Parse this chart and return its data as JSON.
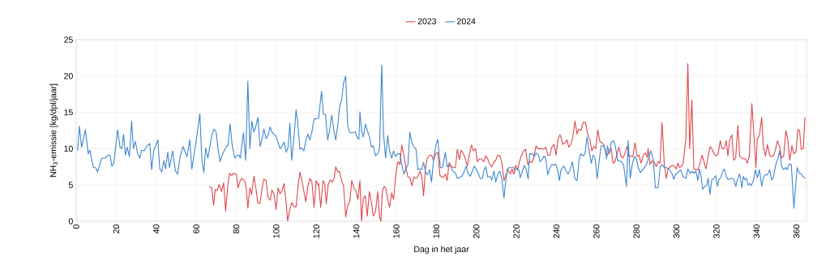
{
  "chart_data": {
    "type": "line",
    "xlabel": "Dag in het jaar",
    "ylabel": "NH$_{3}$-emissie [kg/dpl/jaar]",
    "xlim": [
      0,
      365
    ],
    "xticks": [
      0,
      20,
      40,
      60,
      80,
      100,
      120,
      140,
      160,
      180,
      200,
      220,
      240,
      260,
      280,
      300,
      320,
      340,
      360
    ],
    "ylim": [
      0,
      25
    ],
    "yticks": [
      0,
      5,
      10,
      15,
      20,
      25
    ],
    "grid": true,
    "legend": "top",
    "marker": "none",
    "line_style": "solid",
    "series": [
      {
        "name": "2023",
        "color": "#e0474c",
        "x": [
          66.5,
          67.8,
          68.7,
          69.5,
          70.5,
          71.4,
          72.6,
          73.7,
          74.7,
          75.7,
          76.6,
          77.7,
          78.6,
          80,
          80.9,
          82,
          82.9,
          84.3,
          85,
          85.8,
          86.8,
          87.7,
          88.8,
          89.7,
          90.8,
          91.9,
          92.8,
          93.8,
          94.9,
          95.9,
          97,
          97.8,
          98.9,
          99.9,
          100.9,
          101.9,
          103,
          103.9,
          105,
          105.7,
          106.6,
          107.7,
          108.8,
          109.9,
          110.8,
          111.8,
          112.8,
          113.8,
          114.7,
          115.8,
          116.8,
          117.8,
          118.9,
          119.9,
          120.9,
          121.2,
          122.2,
          123.4,
          124.2,
          125,
          125.9,
          126.9,
          128,
          128.9,
          129.7,
          130.7,
          131.6,
          132.7,
          133.6,
          134.7,
          135.7,
          136.8,
          137.7,
          138.8,
          139.9,
          140.8,
          141.8,
          142.6,
          143.5,
          144.5,
          145.5,
          146.5,
          147.6,
          148.5,
          149.6,
          150.7,
          151.6,
          152.3,
          153,
          153.9,
          154.7,
          155.7,
          156.6,
          157.7,
          158.6,
          159.7,
          160.7,
          161.8,
          162.7,
          163.8,
          164.7,
          165.8,
          166.8,
          167.8,
          168.8,
          169.8,
          170.8,
          171.9,
          172.8,
          173.6,
          174.6,
          175.5,
          176.6,
          177.6,
          178.6,
          179.7,
          180.7,
          181.8,
          182.3,
          183.4,
          184.5,
          185.4,
          186.4,
          187.4,
          188.5,
          189.5,
          190.5,
          191.5,
          192.4,
          193.5,
          194.5,
          195.5,
          196.6,
          197.6,
          198.5,
          199.6,
          200.5,
          201.6,
          202.6,
          203.6,
          204.7,
          205.7,
          206.8,
          207.7,
          208.8,
          209.7,
          210.7,
          211.8,
          212.8,
          213.8,
          214.8,
          215.8,
          216.9,
          217.8,
          218.8,
          219.6,
          220.6,
          221.5,
          222.6,
          223.6,
          224.6,
          225.7,
          226.6,
          227.7,
          228.6,
          229.8,
          230.7,
          231.8,
          232.7,
          233.6,
          234.7,
          235.7,
          236.7,
          237.7,
          238.8,
          239.9,
          240.8,
          241.8,
          242.6,
          243.1,
          244.2,
          245.3,
          246.2,
          247.2,
          248.2,
          249.3,
          250.3,
          251.2,
          252.3,
          253.4,
          254.6,
          255.7,
          256.8,
          257.7,
          258.8,
          259.7,
          260.7,
          261.7,
          262.8,
          263.8,
          264.7,
          265.5,
          266.5,
          267.4,
          268.3,
          269.2,
          270.1,
          271.2,
          272.3,
          273.2,
          274.2,
          275.3,
          276.3,
          277.3,
          278.2,
          279.3,
          280.4,
          281.3,
          282.3,
          283.4,
          284.5,
          285.4,
          285.8,
          286.8,
          287.7,
          288.8,
          289.9,
          290.8,
          291.8,
          292.8,
          293.9,
          294.9,
          295.8,
          296.9,
          297.9,
          298.9,
          299.9,
          300.7,
          301.6,
          302.6,
          303.4,
          304.7,
          305.7,
          306.6,
          307.7,
          308.7,
          309.7,
          310.8,
          311.8,
          312.8,
          313.8,
          314.7,
          315.8,
          316.9,
          317.8,
          318.8,
          319.9,
          320.8,
          321.9,
          322.8,
          323.9,
          324.9,
          325.7,
          326.6,
          327.7,
          328.6,
          329.6,
          330.7,
          331.6,
          332.7,
          333.6,
          334.5,
          335.4,
          336.4,
          337.7,
          338.8,
          339.7,
          340.4,
          341.5,
          342.6,
          343.5,
          344.5,
          345.5,
          346.5,
          347.6,
          348.5,
          349.6,
          350.5,
          351.6,
          352.6,
          353.6,
          354.7,
          355.7,
          356.6,
          357.7,
          358.6,
          359.7,
          360.7,
          361.5,
          362.4,
          363.4,
          364.2
        ],
        "values": [
          4.8,
          4.6,
          2.2,
          4.4,
          4.2,
          5.1,
          4.1,
          5.3,
          1.4,
          4.8,
          6.6,
          6.3,
          6.6,
          6.5,
          4.6,
          5.6,
          5.9,
          5.5,
          4.5,
          1.8,
          4.6,
          3.7,
          6.2,
          4.8,
          2.5,
          2.5,
          4.3,
          5.8,
          5.6,
          3.3,
          2.9,
          4.3,
          3.7,
          1.6,
          4.6,
          3.8,
          4.3,
          5.2,
          2.3,
          0,
          1.4,
          2.6,
          2.0,
          2.0,
          4.6,
          6.8,
          5.6,
          4.1,
          2.7,
          4.8,
          5.9,
          5.4,
          1.9,
          5.6,
          5.0,
          5.2,
          1.9,
          5.6,
          5.2,
          2.4,
          5.0,
          5.7,
          5.4,
          5.9,
          7.5,
          6.8,
          6.9,
          5.5,
          5.0,
          0.6,
          2.2,
          2.8,
          5.6,
          4.6,
          4.1,
          3.0,
          5.6,
          0,
          3.2,
          3.5,
          0.7,
          4.1,
          2.5,
          0.7,
          1.3,
          4.1,
          0.6,
          0,
          4.1,
          4.8,
          4.6,
          3.0,
          1.9,
          3.9,
          3.0,
          6.3,
          8.2,
          7.8,
          10.5,
          9.1,
          7.4,
          6.1,
          6.0,
          4.9,
          6.1,
          5.9,
          6.2,
          6.9,
          6.0,
          3.5,
          7.4,
          8.7,
          9.1,
          9.1,
          8.4,
          9.3,
          9.5,
          6.3,
          6.2,
          6.0,
          6.5,
          5.6,
          8.1,
          7.6,
          7.4,
          7.4,
          9.9,
          8.5,
          9.8,
          9.3,
          8.6,
          7.6,
          9.3,
          10.5,
          9.7,
          10.0,
          8.2,
          8.6,
          8.6,
          8.2,
          9.0,
          8.6,
          7.8,
          7.5,
          8.2,
          8.4,
          9.1,
          9.0,
          8.0,
          5.6,
          6.4,
          7.1,
          6.5,
          7.2,
          6.5,
          7.7,
          7.1,
          8.2,
          9.1,
          9.7,
          9.9,
          7.8,
          8.3,
          8.1,
          8.7,
          10.4,
          10.0,
          10.0,
          10.0,
          9.9,
          10.2,
          9.1,
          9.1,
          10.2,
          10.6,
          9.1,
          11.3,
          11.9,
          11.3,
          10.6,
          10.8,
          11.2,
          10.2,
          10.6,
          11.6,
          13.8,
          12.0,
          12.7,
          12.5,
          13.6,
          13.6,
          11.9,
          11.2,
          9.7,
          10.3,
          10.0,
          12.6,
          11.0,
          10.8,
          10.5,
          9.3,
          9.1,
          9.7,
          10.0,
          8.0,
          8.2,
          9.0,
          10.2,
          8.9,
          8.7,
          9.3,
          10.3,
          8.9,
          9.0,
          8.9,
          10.8,
          8.9,
          9.1,
          8.0,
          9.1,
          9.4,
          8.8,
          10.0,
          7.8,
          8.3,
          8.2,
          7.5,
          8.2,
          8.0,
          13.6,
          8.0,
          5.9,
          7.2,
          7.5,
          7.7,
          7.6,
          7.2,
          8.0,
          7.4,
          7.6,
          8.1,
          11.3,
          21.7,
          10.0,
          16.7,
          7.2,
          7.1,
          7.1,
          8.0,
          9.1,
          8.2,
          7.2,
          8.9,
          10.3,
          9.9,
          9.3,
          9.0,
          9.3,
          11.1,
          10.0,
          10.0,
          11.1,
          9.0,
          11.2,
          11.9,
          8.4,
          8.7,
          13.2,
          9.0,
          8.7,
          8.6,
          8.6,
          8.0,
          8.9,
          16.2,
          11.5,
          7.4,
          11.3,
          11.9,
          14.3,
          10.1,
          9.0,
          10.6,
          9.1,
          8.9,
          9.0,
          10.0,
          11.1,
          10.2,
          8.7,
          9.0,
          12.5,
          11.2,
          8.4,
          10.4,
          9.3,
          9.5,
          12.6,
          12.5,
          9.9,
          10.0,
          14.3
        ]
      },
      {
        "name": "2024",
        "color": "#3f87d0",
        "x": [
          0.7,
          1.6,
          2.7,
          4.6,
          6,
          6.8,
          8.6,
          9.7,
          10.7,
          12.7,
          14.5,
          15.8,
          16.9,
          17.8,
          18.8,
          20.7,
          21.9,
          22.8,
          23.7,
          24.6,
          25.5,
          26.6,
          27.7,
          28.6,
          29.6,
          30.7,
          31.8,
          32.7,
          34,
          35.4,
          36.8,
          37.7,
          38.8,
          40.8,
          41.8,
          42.8,
          43.8,
          44.6,
          45.8,
          46.6,
          48.2,
          49.6,
          50.7,
          52,
          53.4,
          55.4,
          56.8,
          57.8,
          60.4,
          61.8,
          62.8,
          63.8,
          64.7,
          65.8,
          67.8,
          68.9,
          69.9,
          70.9,
          71.9,
          73.2,
          75.3,
          75.9,
          76.9,
          78,
          79.3,
          80.4,
          81.4,
          82,
          83.6,
          84.7,
          85.8,
          86.8,
          87.8,
          88.8,
          89.7,
          90.8,
          91.9,
          92.8,
          93.8,
          94.9,
          95.9,
          96.9,
          98,
          99.9,
          100.9,
          101.9,
          103,
          103.9,
          105,
          105.9,
          106.8,
          107.7,
          108.8,
          109.9,
          110.8,
          111.8,
          112.7,
          113.8,
          114.7,
          115.8,
          116.8,
          117.8,
          118.9,
          119.9,
          120.9,
          121.2,
          122.6,
          123.6,
          124.6,
          125.7,
          126.6,
          127.7,
          128.9,
          129.7,
          130.7,
          131.6,
          132.7,
          133.6,
          134.7,
          135.7,
          136.8,
          138.1,
          139.5,
          140.5,
          141.3,
          141.8,
          142.6,
          143.5,
          144.6,
          145.5,
          146.6,
          147.6,
          148.5,
          149.6,
          150.7,
          151.6,
          152.7,
          153.6,
          154.6,
          155.7,
          156.6,
          157.7,
          158.6,
          159.7,
          160.7,
          161.8,
          162.7,
          163.8,
          164.7,
          165.8,
          166.8,
          167.8,
          168.8,
          169.8,
          170.8,
          171.9,
          172.6,
          173.6,
          174.6,
          175.5,
          176.6,
          177.6,
          178.6,
          179.7,
          180.7,
          182,
          183.1,
          184.5,
          185.4,
          186.4,
          187.4,
          188.5,
          189.5,
          190.5,
          191.5,
          192.6,
          193.6,
          194.9,
          195.8,
          196.9,
          197.9,
          198.9,
          199.9,
          201,
          201.9,
          203,
          203.9,
          204.7,
          205.7,
          206.8,
          207.7,
          208.8,
          209.7,
          210.7,
          211.8,
          212.8,
          213.8,
          214.7,
          215.5,
          216.5,
          217.4,
          218.5,
          219.4,
          220.3,
          221.2,
          221.9,
          222.8,
          223.9,
          224.9,
          225.9,
          226.6,
          227.9,
          228.9,
          229.9,
          231,
          231.9,
          233,
          233.9,
          234.7,
          235.7,
          236.6,
          237.6,
          238.5,
          239.6,
          240.6,
          241.5,
          242.3,
          243.8,
          244.9,
          245.8,
          246.9,
          248,
          249.2,
          250.3,
          251.4,
          252.3,
          253.4,
          254.3,
          255.3,
          256.4,
          257.4,
          258.4,
          259.3,
          260.4,
          261.5,
          262.4,
          263.4,
          264.5,
          265.1,
          265.5,
          266.5,
          267.4,
          268.5,
          269.6,
          270.5,
          271.5,
          272.6,
          273.6,
          275,
          275.9,
          276.9,
          278,
          279.1,
          280,
          280.9,
          282,
          283.1,
          284,
          285,
          286,
          287.2,
          288.3,
          289.5,
          290.8,
          291.8,
          292.8,
          293.9,
          294.9,
          296.2,
          297.6,
          298.7,
          299.6,
          300.7,
          302,
          303.4,
          304.7,
          305.7,
          307,
          308,
          308.8,
          309.7,
          310.7,
          311.5,
          312.2,
          313.1,
          314.1,
          315.1,
          315.8,
          316.8,
          317.6,
          318.5,
          319.6,
          320.5,
          321.2,
          322.3,
          323.2,
          323.9,
          325,
          325.9,
          326.9,
          328,
          328.8,
          329.6,
          330.7,
          331.6,
          332.7,
          333.4,
          334.2,
          335,
          335.8,
          336.8,
          337.4,
          338.5,
          339.5,
          340.4,
          341.5,
          342.6,
          343.5,
          344.5,
          345.5,
          346.6,
          347.6,
          348.5,
          349.6,
          350.7,
          351.6,
          352.6,
          353.6,
          354.6,
          355.4,
          356.4,
          357.4,
          358.7,
          359.5,
          360.4,
          361.5,
          362.4,
          363.4,
          364.5
        ],
        "values": [
          9.7,
          13.1,
          10.2,
          12.6,
          9.3,
          9.8,
          7.4,
          7.4,
          6.8,
          8.7,
          8.7,
          9.1,
          9.1,
          7.6,
          8.0,
          12.6,
          10.2,
          10.0,
          12.0,
          9.1,
          10.2,
          8.9,
          13.8,
          10.0,
          11.0,
          9.3,
          8.7,
          9.8,
          9.7,
          10.4,
          10.7,
          7.1,
          9.8,
          11.2,
          7.2,
          6.8,
          8.4,
          7.2,
          9.5,
          7.4,
          9.7,
          6.9,
          6.5,
          9.0,
          10.3,
          8.9,
          11.2,
          7.2,
          11.9,
          14.8,
          8.4,
          6.7,
          10.1,
          8.7,
          11.9,
          12.7,
          12.3,
          10.0,
          8.2,
          9.3,
          10.4,
          10.4,
          13.4,
          10.4,
          8.7,
          9.1,
          9.1,
          8.7,
          12.2,
          8.4,
          19.3,
          10.0,
          13.8,
          12.3,
          13.0,
          14.3,
          10.3,
          11.2,
          12.7,
          11.4,
          11.8,
          13.0,
          12.2,
          11.7,
          10.8,
          10.0,
          10.4,
          10.9,
          9.5,
          10.2,
          13.5,
          8.4,
          11.4,
          15.3,
          13.4,
          9.9,
          10.1,
          9.7,
          11.0,
          12.0,
          11.2,
          12.3,
          14.1,
          14.1,
          14.2,
          14.2,
          17.9,
          14.7,
          14.7,
          11.2,
          12.5,
          14.6,
          12.3,
          11.2,
          13.1,
          15.6,
          16.8,
          19.0,
          20.0,
          13.1,
          12.2,
          12.2,
          12.3,
          11.5,
          11.3,
          15.1,
          12.5,
          11.6,
          13.4,
          12.5,
          11.6,
          10.2,
          10.4,
          9.0,
          9.3,
          10.0,
          21.5,
          12.1,
          8.7,
          11.8,
          9.7,
          8.7,
          9.7,
          8.9,
          9.3,
          9.3,
          7.8,
          6.5,
          7.2,
          7.8,
          12.3,
          10.8,
          10.2,
          10.0,
          7.1,
          7.2,
          7.1,
          8.1,
          6.8,
          6.4,
          7.1,
          5.4,
          8.5,
          10.4,
          11.3,
          7.4,
          7.4,
          9.5,
          7.5,
          7.8,
          7.4,
          6.8,
          6.7,
          5.9,
          6.0,
          6.2,
          6.6,
          7.6,
          6.6,
          6.2,
          6.8,
          7.6,
          7.2,
          6.6,
          5.9,
          5.9,
          7.1,
          7.5,
          6.1,
          6.2,
          5.7,
          6.9,
          5.4,
          6.5,
          6.9,
          5.7,
          3.2,
          5.6,
          7.2,
          7.4,
          7.4,
          7.4,
          7.1,
          7.2,
          7.1,
          6.0,
          6.7,
          7.7,
          7.2,
          5.8,
          9.3,
          9.3,
          8.9,
          9.4,
          9.1,
          8.2,
          8.6,
          9.0,
          8.6,
          6.4,
          7.2,
          7.8,
          7.7,
          7.9,
          7.1,
          5.6,
          7.1,
          7.6,
          6.9,
          6.5,
          7.1,
          8.2,
          5.9,
          5.6,
          8.6,
          9.3,
          9.0,
          9.3,
          11.6,
          9.7,
          8.0,
          9.1,
          8.7,
          5.9,
          8.6,
          10.4,
          10.4,
          9.9,
          8.6,
          10.4,
          9.3,
          10.9,
          11.1,
          10.2,
          8.4,
          8.3,
          8.2,
          7.7,
          4.8,
          11.1,
          5.9,
          8.0,
          8.9,
          8.6,
          7.4,
          6.7,
          7.1,
          7.4,
          7.8,
          8.7,
          9.7,
          8.7,
          4.6,
          4.6,
          7.4,
          7.8,
          7.4,
          7.4,
          7.2,
          6.7,
          5.8,
          6.5,
          6.7,
          7.1,
          6.1,
          5.9,
          7.2,
          6.6,
          6.9,
          6.6,
          6.9,
          5.6,
          7.2,
          6.4,
          4.4,
          4.8,
          4.9,
          5.9,
          3.7,
          5.7,
          5.8,
          6.3,
          4.8,
          5.7,
          6.1,
          6.9,
          7.2,
          6.1,
          5.7,
          5.9,
          5.9,
          5.7,
          4.8,
          5.9,
          6.5,
          4.6,
          6.2,
          5.7,
          5.9,
          5.0,
          5.2,
          4.9,
          5.6,
          7.1,
          6.0,
          7.1,
          4.8,
          6.1,
          6.4,
          6.4,
          7.1,
          5.7,
          6.1,
          7.8,
          8.6,
          9.7,
          7.5,
          7.1,
          7.4,
          7.1,
          7.9,
          7.8,
          1.8,
          4.8,
          7.4,
          6.6,
          6.5,
          6.1,
          5.9
        ]
      }
    ]
  }
}
